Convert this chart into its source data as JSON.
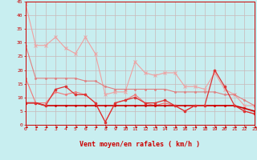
{
  "xlabel": "Vent moyen/en rafales ( km/h )",
  "bg_color": "#c8eef0",
  "grid_color": "#c8b8b8",
  "x_min": 0,
  "x_max": 23,
  "y_min": 0,
  "y_max": 45,
  "series": [
    {
      "name": "light_pink_diagonal",
      "color": "#f0a0a0",
      "linewidth": 0.8,
      "marker": "x",
      "markersize": 3,
      "markeredgewidth": 0.7,
      "x": [
        0,
        1,
        2,
        3,
        4,
        5,
        6,
        7,
        8,
        9,
        10,
        11,
        12,
        13,
        14,
        15,
        16,
        17,
        18,
        19,
        20,
        21,
        22,
        23
      ],
      "y": [
        44,
        29,
        29,
        32,
        28,
        26,
        32,
        26,
        11,
        12,
        12,
        23,
        19,
        18,
        19,
        19,
        14,
        14,
        13,
        19,
        13,
        11,
        7,
        7
      ]
    },
    {
      "name": "medium_pink_smooth",
      "color": "#e08080",
      "linewidth": 0.8,
      "marker": "o",
      "markersize": 1.5,
      "markeredgewidth": 0.5,
      "x": [
        0,
        1,
        2,
        3,
        4,
        5,
        6,
        7,
        8,
        9,
        10,
        11,
        12,
        13,
        14,
        15,
        16,
        17,
        18,
        19,
        20,
        21,
        22,
        23
      ],
      "y": [
        29,
        17,
        17,
        17,
        17,
        17,
        16,
        16,
        14,
        13,
        13,
        13,
        13,
        13,
        13,
        12,
        12,
        12,
        12,
        12,
        11,
        11,
        9,
        7
      ]
    },
    {
      "name": "pink_spiky",
      "color": "#f07878",
      "linewidth": 0.8,
      "marker": "o",
      "markersize": 1.5,
      "markeredgewidth": 0.5,
      "x": [
        0,
        1,
        2,
        3,
        4,
        5,
        6,
        7,
        8,
        9,
        10,
        11,
        12,
        13,
        14,
        15,
        16,
        17,
        18,
        19,
        20,
        21,
        22,
        23
      ],
      "y": [
        17,
        8,
        8,
        12,
        11,
        12,
        11,
        8,
        1,
        8,
        9,
        11,
        8,
        7,
        8,
        7,
        5,
        7,
        7,
        7,
        7,
        7,
        5,
        4
      ]
    },
    {
      "name": "dark_red_flat",
      "color": "#cc0000",
      "linewidth": 1.2,
      "marker": "o",
      "markersize": 1.5,
      "markeredgewidth": 0.5,
      "x": [
        0,
        1,
        2,
        3,
        4,
        5,
        6,
        7,
        8,
        9,
        10,
        11,
        12,
        13,
        14,
        15,
        16,
        17,
        18,
        19,
        20,
        21,
        22,
        23
      ],
      "y": [
        8,
        8,
        7,
        7,
        7,
        7,
        7,
        7,
        7,
        7,
        7,
        7,
        7,
        7,
        7,
        7,
        7,
        7,
        7,
        7,
        7,
        7,
        6,
        5
      ]
    },
    {
      "name": "red_spiky",
      "color": "#dd3333",
      "linewidth": 0.9,
      "marker": "o",
      "markersize": 2,
      "markeredgewidth": 0.6,
      "x": [
        0,
        1,
        2,
        3,
        4,
        5,
        6,
        7,
        8,
        9,
        10,
        11,
        12,
        13,
        14,
        15,
        16,
        17,
        18,
        19,
        20,
        21,
        22,
        23
      ],
      "y": [
        8,
        8,
        7,
        13,
        14,
        11,
        11,
        8,
        1,
        8,
        9,
        10,
        8,
        8,
        9,
        7,
        5,
        7,
        7,
        20,
        14,
        7,
        5,
        4
      ]
    }
  ],
  "tick_label_fontsize": 4.5,
  "xlabel_fontsize": 6.0,
  "ytick_values": [
    0,
    5,
    10,
    15,
    20,
    25,
    30,
    35,
    40,
    45
  ]
}
